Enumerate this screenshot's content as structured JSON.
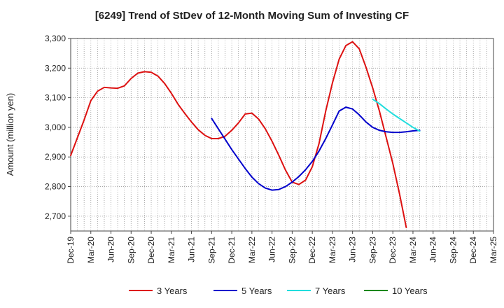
{
  "chart_data": {
    "type": "line",
    "title": "[6249]  Trend of StDev of 12-Month Moving Sum of Investing CF",
    "ylabel": "Amount (million yen)",
    "ylim": [
      2650,
      3300
    ],
    "yticks": [
      2700,
      2800,
      2900,
      3000,
      3100,
      3200,
      3300
    ],
    "ytick_labels": [
      "2,700",
      "2,800",
      "2,900",
      "3,000",
      "3,100",
      "3,200",
      "3,300"
    ],
    "x_start": "2019-12",
    "x_end": "2025-03",
    "x_tick_labels": [
      "Dec-19",
      "Mar-20",
      "Jun-20",
      "Sep-20",
      "Dec-20",
      "Mar-21",
      "Jun-21",
      "Sep-21",
      "Dec-21",
      "Mar-22",
      "Jun-22",
      "Sep-22",
      "Dec-22",
      "Mar-23",
      "Jun-23",
      "Sep-23",
      "Dec-23",
      "Mar-24",
      "Jun-24",
      "Sep-24",
      "Dec-24",
      "Mar-25"
    ],
    "grid": true,
    "legend_position": "bottom",
    "series": [
      {
        "name": "3 Years",
        "color": "#dd1111",
        "x_start": "2019-12",
        "values": [
          2905,
          2965,
          3025,
          3090,
          3122,
          3135,
          3133,
          3132,
          3140,
          3165,
          3183,
          3188,
          3186,
          3173,
          3148,
          3115,
          3078,
          3047,
          3018,
          2992,
          2973,
          2962,
          2962,
          2970,
          2990,
          3015,
          3045,
          3048,
          3028,
          2995,
          2953,
          2906,
          2856,
          2815,
          2807,
          2822,
          2867,
          2945,
          3055,
          3150,
          3230,
          3276,
          3289,
          3265,
          3203,
          3133,
          3055,
          2967,
          2878,
          2775,
          2662
        ]
      },
      {
        "name": "5 Years",
        "color": "#0000cc",
        "x_start": "2021-09",
        "values": [
          3030,
          2995,
          2960,
          2925,
          2893,
          2861,
          2832,
          2810,
          2795,
          2788,
          2790,
          2800,
          2815,
          2834,
          2857,
          2885,
          2920,
          2962,
          3008,
          3055,
          3068,
          3062,
          3042,
          3018,
          3000,
          2990,
          2985,
          2983,
          2983,
          2985,
          2988,
          2990
        ]
      },
      {
        "name": "7 Years",
        "color": "#22dddd",
        "x_start": "2023-09",
        "values": [
          3095,
          3080,
          3062,
          3045,
          3030,
          3015,
          3000,
          2987
        ]
      },
      {
        "name": "10 Years",
        "color": "#118811",
        "x_start": "2024-03",
        "values": []
      }
    ]
  }
}
